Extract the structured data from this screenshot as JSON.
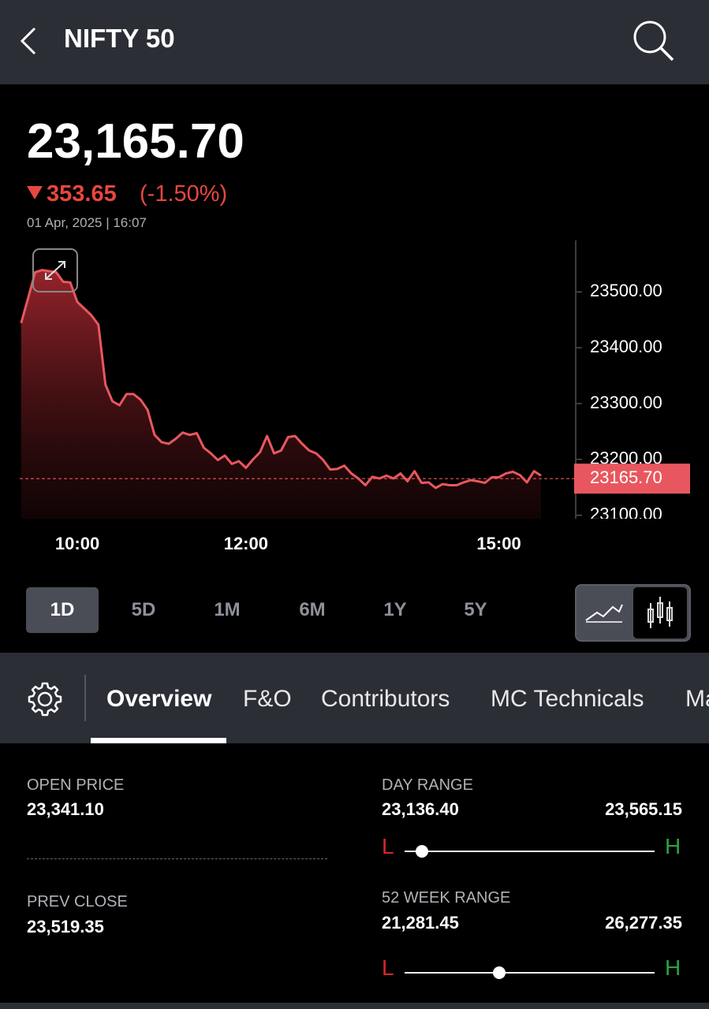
{
  "header": {
    "title": "NIFTY 50"
  },
  "quote": {
    "price": "23,165.70",
    "change": "353.65",
    "change_pct": "(-1.50%)",
    "timestamp": "01 Apr, 2025 | 16:07"
  },
  "chart": {
    "type": "line",
    "color": "#e8575f",
    "x": [
      560,
      565,
      570,
      575,
      580,
      585,
      590,
      595,
      600,
      605,
      610,
      615,
      620,
      625,
      630,
      635,
      640,
      645,
      650,
      655,
      660,
      665,
      670,
      675,
      680,
      685,
      690,
      695,
      700,
      705,
      710,
      715,
      720,
      725,
      730,
      735,
      740,
      745,
      750,
      755,
      760,
      765,
      770,
      775,
      780,
      785,
      790,
      795,
      800,
      805,
      810,
      815,
      820,
      825,
      830,
      835,
      840,
      845,
      850,
      855,
      860,
      865,
      870,
      875,
      880,
      885,
      890,
      895,
      900,
      905,
      910,
      915,
      920,
      925,
      930
    ],
    "values": [
      23444,
      23489,
      23535,
      23539,
      23537,
      23535,
      23518,
      23517,
      23482,
      23470,
      23458,
      23441,
      23334,
      23304,
      23297,
      23317,
      23317,
      23307,
      23289,
      23244,
      23231,
      23228,
      23237,
      23248,
      23244,
      23247,
      23221,
      23211,
      23199,
      23207,
      23192,
      23197,
      23185,
      23200,
      23213,
      23242,
      23211,
      23216,
      23240,
      23242,
      23228,
      23216,
      23211,
      23199,
      23182,
      23183,
      23189,
      23175,
      23166,
      23154,
      23169,
      23166,
      23171,
      23166,
      23175,
      23161,
      23179,
      23158,
      23159,
      23149,
      23156,
      23154,
      23154,
      23159,
      23163,
      23161,
      23158,
      23168,
      23168,
      23175,
      23178,
      23172,
      23159,
      23179,
      23171
    ],
    "xlim": [
      559,
      930
    ],
    "xticks": [
      {
        "value": 600,
        "label": "10:00"
      },
      {
        "value": 720,
        "label": "12:00"
      },
      {
        "value": 900,
        "label": "15:00"
      }
    ],
    "ylim": [
      23094,
      23592
    ],
    "yticks": [
      {
        "value": 23100,
        "label": "23100.00"
      },
      {
        "value": 23200,
        "label": "23200.00"
      },
      {
        "value": 23300,
        "label": "23300.00"
      },
      {
        "value": 23400,
        "label": "23400.00"
      },
      {
        "value": 23500,
        "label": "23500.00"
      }
    ],
    "last": {
      "value": 23165.7,
      "label": "23165.70"
    }
  },
  "ranges": [
    "1D",
    "5D",
    "1M",
    "6M",
    "1Y",
    "5Y"
  ],
  "tabs": [
    "Overview",
    "F&O",
    "Contributors",
    "MC Technicals",
    "Ma"
  ],
  "stats": {
    "open_price": {
      "label": "OPEN PRICE",
      "value": "23,341.10"
    },
    "prev_close": {
      "label": "PREV CLOSE",
      "value": "23,519.35"
    },
    "day_range": {
      "label": "DAY RANGE",
      "low": "23,136.40",
      "high": "23,565.15",
      "low_marker": "L",
      "high_marker": "H"
    },
    "week52_range": {
      "label": "52 WEEK RANGE",
      "low": "21,281.45",
      "high": "26,277.35",
      "low_marker": "L",
      "high_marker": "H"
    }
  }
}
